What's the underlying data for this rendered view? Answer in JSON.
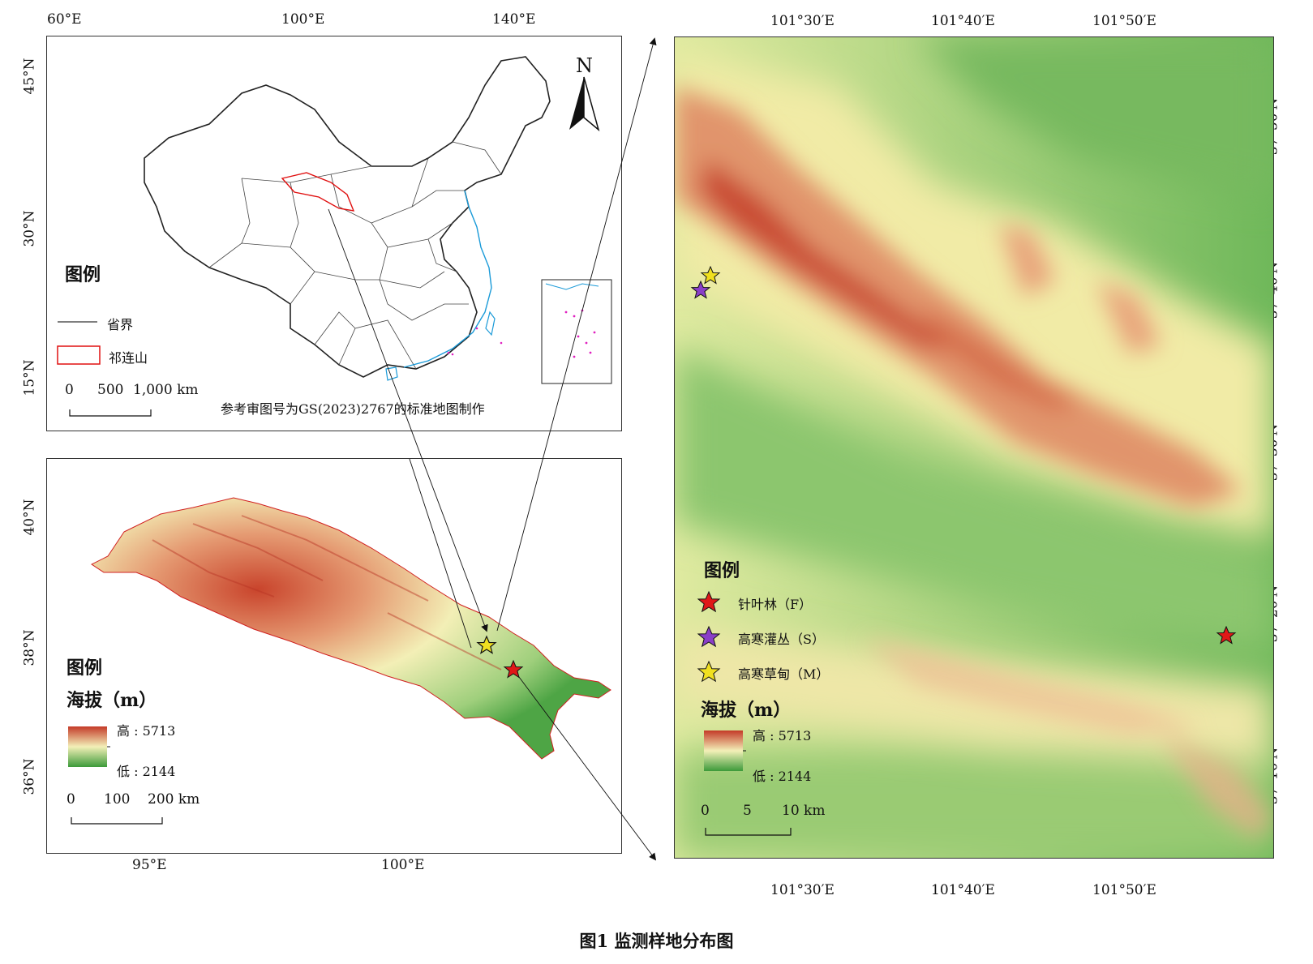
{
  "figure": {
    "caption": "图1  监测样地分布图"
  },
  "china_map": {
    "lon_ticks": [
      "60°E",
      "100°E",
      "140°E"
    ],
    "lat_ticks": [
      "45°N",
      "30°N",
      "15°N"
    ],
    "north_arrow": "N",
    "legend_title": "图例",
    "legend_items": [
      {
        "label": "省界",
        "symbol": "line",
        "color": "#333333"
      },
      {
        "label": "祁连山",
        "symbol": "rect",
        "color": "#e01010"
      }
    ],
    "scale_bar": {
      "labels": [
        "0",
        "500",
        "1,000 km"
      ]
    },
    "note": "参考审图号为GS(2023)2767的标准地图制作",
    "sea_color": "#1a9ad8",
    "island_color": "#e020c0"
  },
  "qilian_map": {
    "lon_ticks": [
      "95°E",
      "100°E"
    ],
    "lat_ticks": [
      "40°N",
      "38°N",
      "36°N"
    ],
    "legend_title": "图例",
    "elevation_title": "海拔（m）",
    "elev_high": "高 : 5713",
    "elev_low": "低 : 2144",
    "scale_bar": {
      "labels": [
        "0",
        "100",
        "200 km"
      ]
    }
  },
  "detail_map": {
    "lon_ticks": [
      "101°30′E",
      "101°40′E",
      "101°50′E"
    ],
    "lat_ticks": [
      "37°50′N",
      "37°40′N",
      "37°30′N",
      "37°20′N",
      "37°10′N"
    ],
    "legend_title": "图例",
    "legend_items": [
      {
        "label": "针叶林（F）",
        "color": "#e01818",
        "icon": "red-star"
      },
      {
        "label": "高寒灌丛（S）",
        "color": "#8a3fc8",
        "icon": "purple-star"
      },
      {
        "label": "高寒草甸（M）",
        "color": "#f0e020",
        "icon": "yellow-star"
      }
    ],
    "elevation_title": "海拔（m）",
    "elev_high": "高 : 5713",
    "elev_low": "低 : 2144",
    "scale_bar": {
      "labels": [
        "0",
        "5",
        "10 km"
      ]
    }
  },
  "colors": {
    "elev_high": "#c43a28",
    "elev_mid": "#f3f0b8",
    "elev_low": "#3c9a3a"
  }
}
